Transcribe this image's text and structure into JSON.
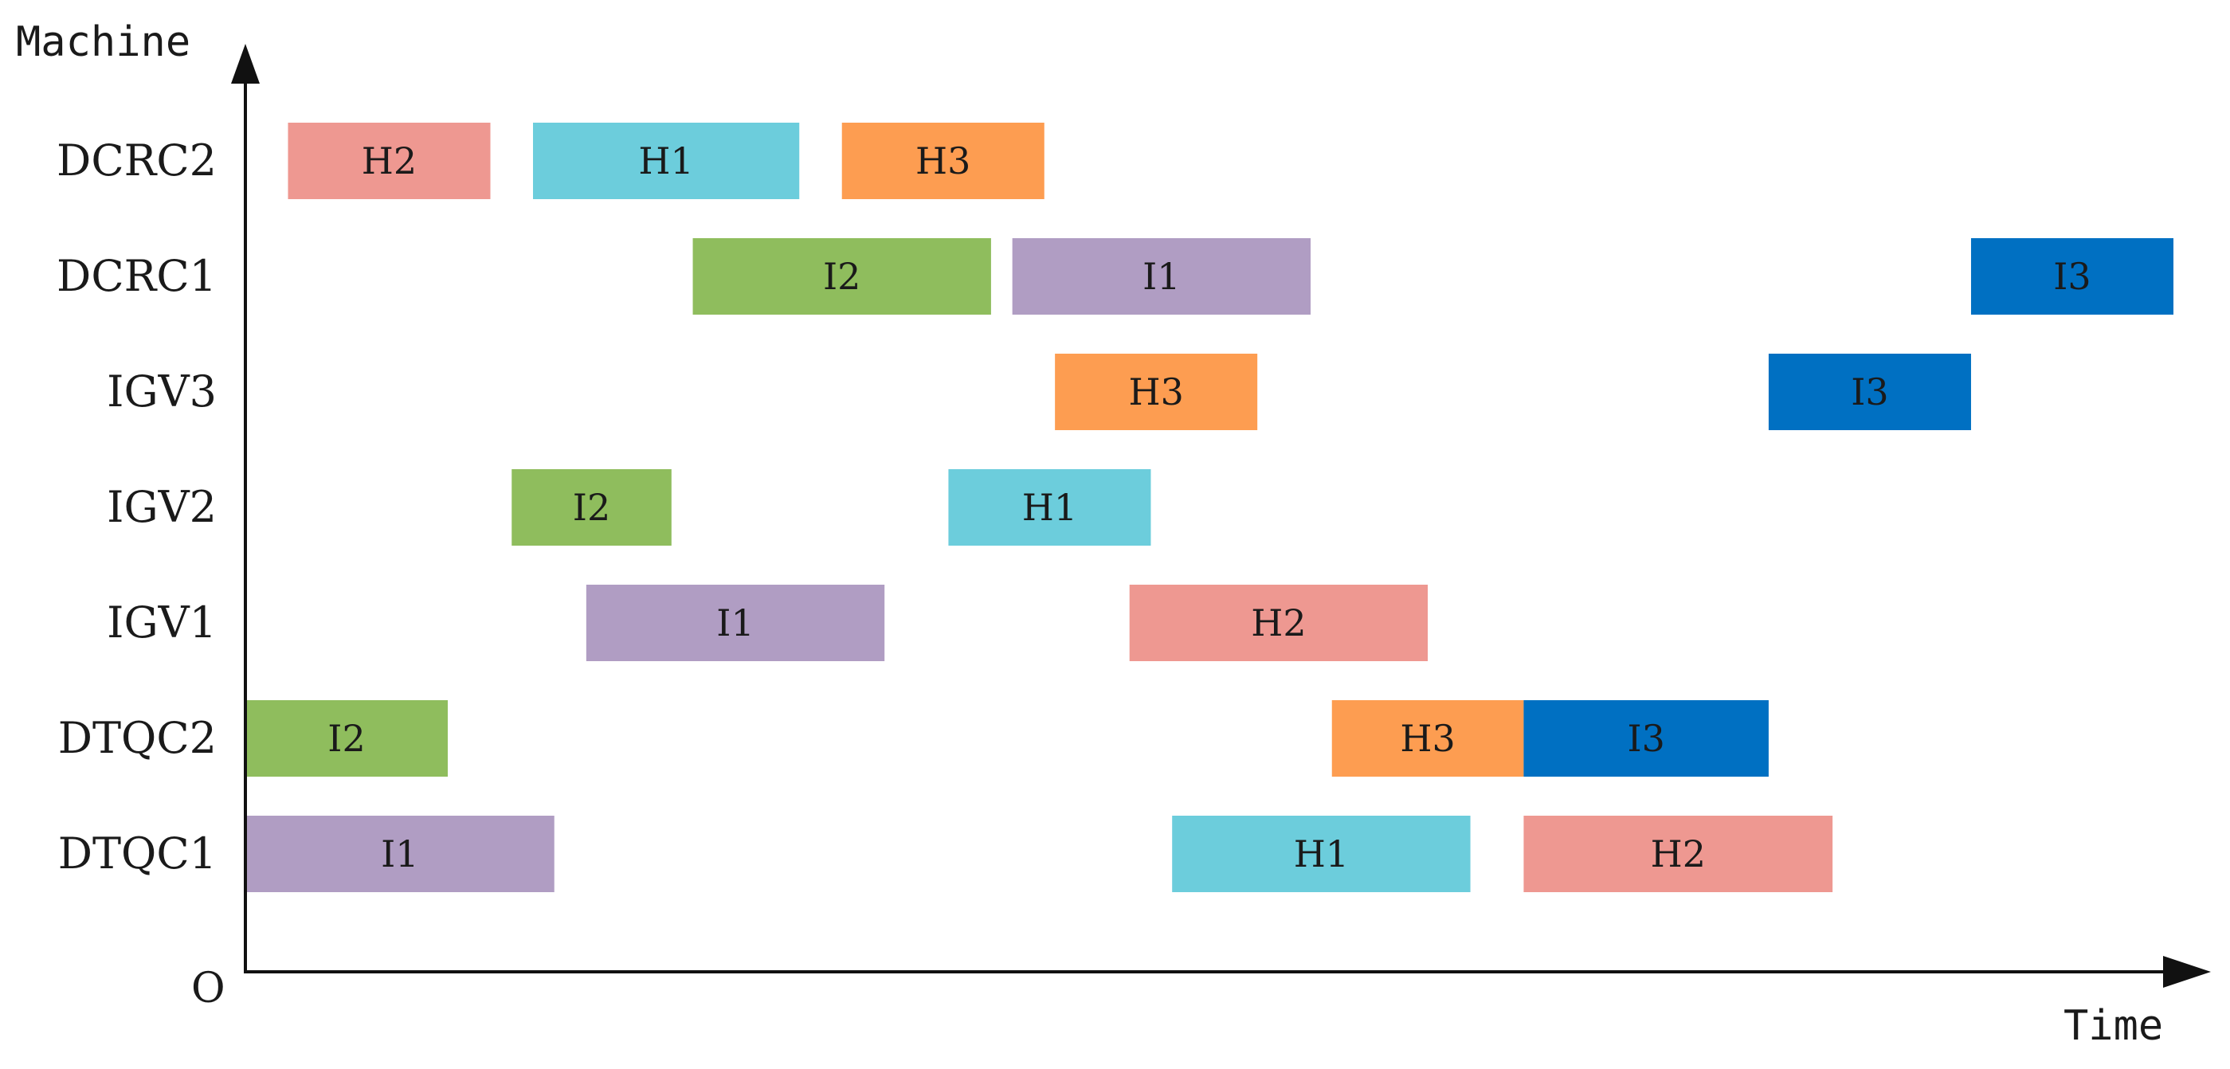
{
  "chart_data": {
    "type": "gantt",
    "title": "",
    "ylabel": "Machine",
    "xlabel": "Time",
    "origin_label": "O",
    "machines": [
      "DTQC1",
      "DTQC2",
      "IGV1",
      "IGV2",
      "IGV3",
      "DCRC1",
      "DCRC2"
    ],
    "colors": {
      "H1": "#6ccddc",
      "H2": "#ee9891",
      "H3": "#fd9d51",
      "I1": "#b09dc3",
      "I2": "#8fbd5d",
      "I3": "#0070c2"
    },
    "tasks": [
      {
        "machine": "DCRC2",
        "job": "H2",
        "start": 0.4,
        "end": 2.3
      },
      {
        "machine": "DCRC2",
        "job": "H1",
        "start": 2.7,
        "end": 5.2
      },
      {
        "machine": "DCRC2",
        "job": "H3",
        "start": 5.6,
        "end": 7.5
      },
      {
        "machine": "DCRC1",
        "job": "I2",
        "start": 4.2,
        "end": 7.0
      },
      {
        "machine": "DCRC1",
        "job": "I1",
        "start": 7.2,
        "end": 10.0
      },
      {
        "machine": "DCRC1",
        "job": "I3",
        "start": 16.2,
        "end": 18.1
      },
      {
        "machine": "IGV3",
        "job": "H3",
        "start": 7.6,
        "end": 9.5
      },
      {
        "machine": "IGV3",
        "job": "I3",
        "start": 14.3,
        "end": 16.2
      },
      {
        "machine": "IGV2",
        "job": "I2",
        "start": 2.5,
        "end": 4.0
      },
      {
        "machine": "IGV2",
        "job": "H1",
        "start": 6.6,
        "end": 8.5
      },
      {
        "machine": "IGV1",
        "job": "I1",
        "start": 3.2,
        "end": 6.0
      },
      {
        "machine": "IGV1",
        "job": "H2",
        "start": 8.3,
        "end": 11.1
      },
      {
        "machine": "DTQC2",
        "job": "I2",
        "start": 0.0,
        "end": 1.9
      },
      {
        "machine": "DTQC2",
        "job": "H3",
        "start": 10.2,
        "end": 12.0
      },
      {
        "machine": "DTQC2",
        "job": "I3",
        "start": 12.0,
        "end": 14.3
      },
      {
        "machine": "DTQC1",
        "job": "I1",
        "start": 0.0,
        "end": 2.9
      },
      {
        "machine": "DTQC1",
        "job": "H1",
        "start": 8.7,
        "end": 11.5
      },
      {
        "machine": "DTQC1",
        "job": "H2",
        "start": 12.0,
        "end": 14.9
      }
    ],
    "xlim": [
      0,
      18.1
    ]
  }
}
